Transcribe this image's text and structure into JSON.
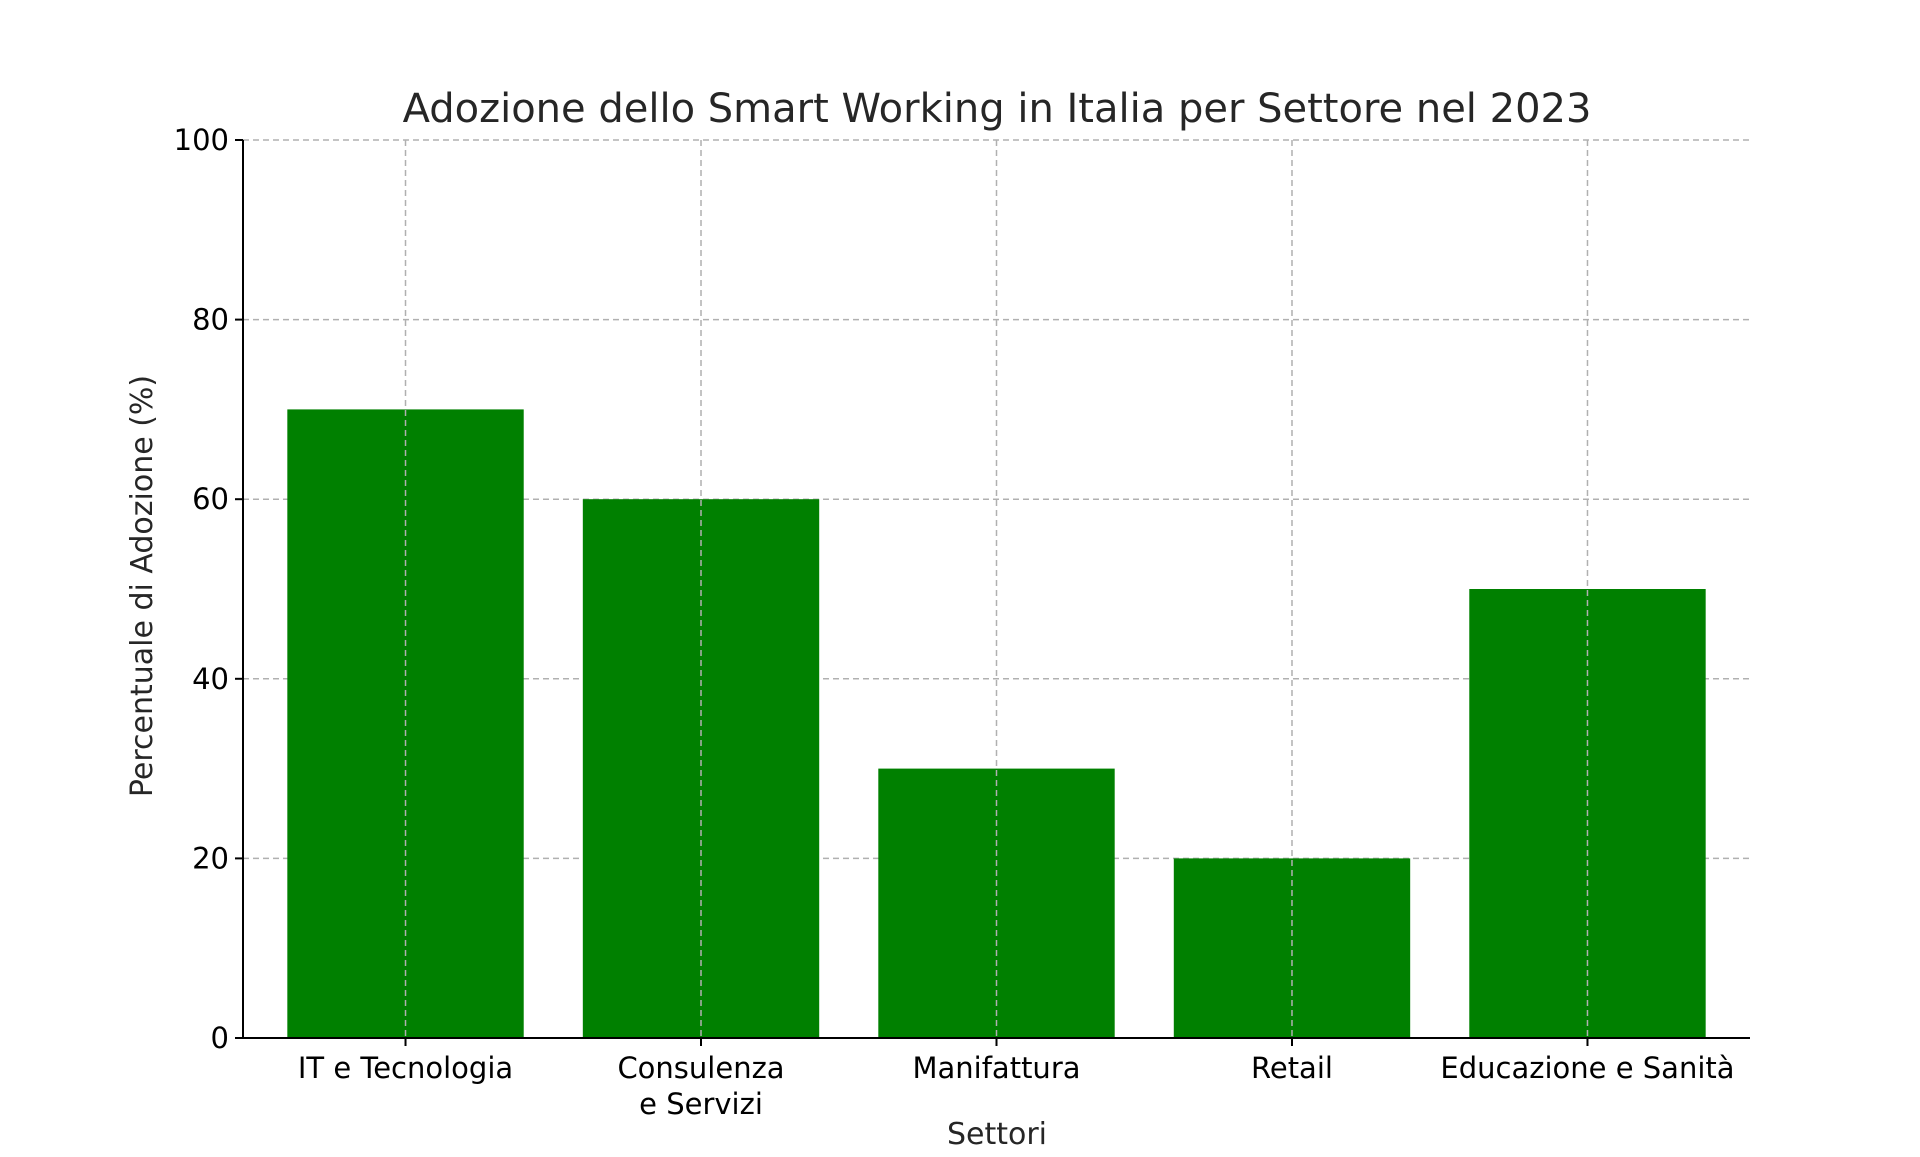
{
  "chart_data": {
    "type": "bar",
    "title": "Adozione dello Smart Working in Italia per Settore nel 2023",
    "xlabel": "Settori",
    "ylabel": "Percentuale di Adozione (%)",
    "categories": [
      [
        "IT e Tecnologia"
      ],
      [
        "Consulenza",
        "e Servizi"
      ],
      [
        "Manifattura"
      ],
      [
        "Retail"
      ],
      [
        "Educazione e Sanità"
      ]
    ],
    "values": [
      70,
      60,
      30,
      20,
      50
    ],
    "ylim": [
      0,
      100
    ],
    "yticks": [
      0,
      20,
      40,
      60,
      80,
      100
    ],
    "grid": true,
    "bar_color": "#008000",
    "grid_color": "#b0b0b0",
    "text_color": "#262626"
  }
}
